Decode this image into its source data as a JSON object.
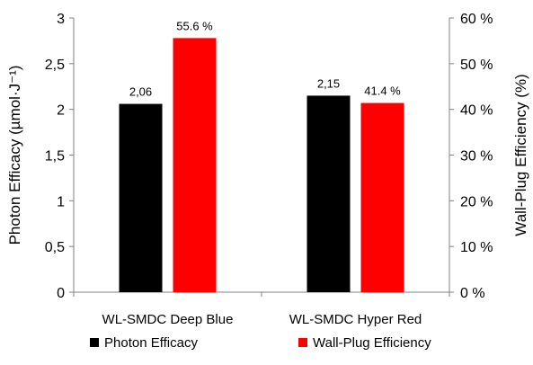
{
  "chart_data": {
    "type": "bar",
    "categories": [
      "WL-SMDC Deep Blue",
      "WL-SMDC Hyper Red"
    ],
    "series": [
      {
        "name": "Photon Efficacy",
        "axis": "left",
        "color": "#000000",
        "values": [
          2.06,
          2.15
        ],
        "value_labels": [
          "2,06",
          "2,15"
        ]
      },
      {
        "name": "Wall-Plug Efficiency",
        "axis": "right",
        "color": "#ff0000",
        "values": [
          55.6,
          41.4
        ],
        "value_labels": [
          "55.6 %",
          "41.4 %"
        ]
      }
    ],
    "ylabel": "Photon Efficacy (µmol·J⁻¹)",
    "ylim": [
      0,
      3
    ],
    "yticks": [
      0,
      0.5,
      1,
      1.5,
      2,
      2.5,
      3
    ],
    "ytick_labels": [
      "0",
      "0,5",
      "1",
      "1,5",
      "2",
      "2,5",
      "3"
    ],
    "y2label": "Wall-Plug Efficiency (%)",
    "y2lim": [
      0,
      60
    ],
    "y2ticks": [
      0,
      10,
      20,
      30,
      40,
      50,
      60
    ],
    "y2tick_labels": [
      "0 %",
      "10 %",
      "20 %",
      "30 %",
      "40 %",
      "50 %",
      "60 %"
    ],
    "grid": false,
    "legend_position": "bottom"
  }
}
